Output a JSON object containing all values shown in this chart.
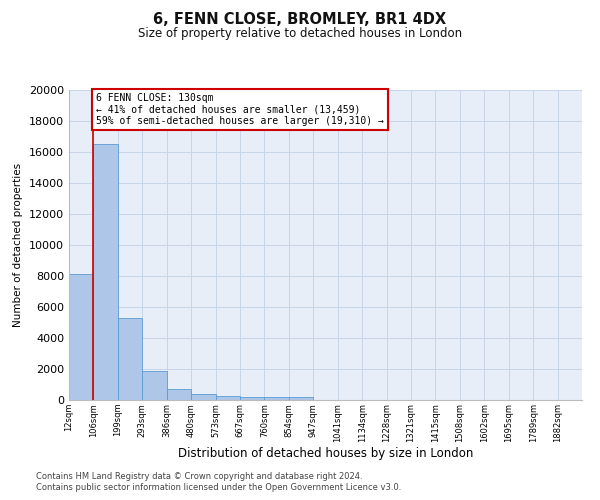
{
  "title1": "6, FENN CLOSE, BROMLEY, BR1 4DX",
  "title2": "Size of property relative to detached houses in London",
  "xlabel": "Distribution of detached houses by size in London",
  "ylabel": "Number of detached properties",
  "bin_labels": [
    "12sqm",
    "106sqm",
    "199sqm",
    "293sqm",
    "386sqm",
    "480sqm",
    "573sqm",
    "667sqm",
    "760sqm",
    "854sqm",
    "947sqm",
    "1041sqm",
    "1134sqm",
    "1228sqm",
    "1321sqm",
    "1415sqm",
    "1508sqm",
    "1602sqm",
    "1695sqm",
    "1789sqm",
    "1882sqm"
  ],
  "bar_heights": [
    8100,
    16500,
    5300,
    1850,
    700,
    380,
    280,
    210,
    190,
    165,
    0,
    0,
    0,
    0,
    0,
    0,
    0,
    0,
    0,
    0,
    0
  ],
  "bar_color": "#aec6e8",
  "bar_edge_color": "#5b9bd5",
  "property_line_color": "#cc0000",
  "property_line_x": 0.5,
  "annotation_line1": "6 FENN CLOSE: 130sqm",
  "annotation_line2": "← 41% of detached houses are smaller (13,459)",
  "annotation_line3": "59% of semi-detached houses are larger (19,310) →",
  "annotation_border_color": "#cc0000",
  "ylim": [
    0,
    20000
  ],
  "yticks": [
    0,
    2000,
    4000,
    6000,
    8000,
    10000,
    12000,
    14000,
    16000,
    18000,
    20000
  ],
  "footer1": "Contains HM Land Registry data © Crown copyright and database right 2024.",
  "footer2": "Contains public sector information licensed under the Open Government Licence v3.0.",
  "grid_color": "#c8d4e8",
  "bg_color": "#e8eef8"
}
